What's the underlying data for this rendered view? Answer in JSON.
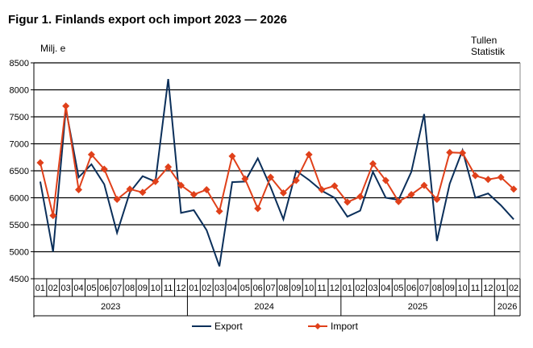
{
  "title": "Figur 1. Finlands export och import 2023 — 2026",
  "unit_label": "Milj. e",
  "source": [
    "Tullen",
    "Statistik"
  ],
  "chart_data": {
    "type": "line",
    "title": "Figur 1. Finlands export och import 2023 — 2026",
    "ylabel": "Milj. e",
    "ylim": [
      4500,
      8500
    ],
    "yticks": [
      4500,
      5000,
      5500,
      6000,
      6500,
      7000,
      7500,
      8000,
      8500
    ],
    "grid": true,
    "legend": "bottom",
    "years": [
      {
        "label": "2023",
        "months": 12
      },
      {
        "label": "2024",
        "months": 12
      },
      {
        "label": "2025",
        "months": 12
      },
      {
        "label": "2026",
        "months": 2
      }
    ],
    "categories": [
      "01",
      "02",
      "03",
      "04",
      "05",
      "06",
      "07",
      "08",
      "09",
      "10",
      "11",
      "12",
      "01",
      "02",
      "03",
      "04",
      "05",
      "06",
      "07",
      "08",
      "09",
      "10",
      "11",
      "12",
      "01",
      "02",
      "03",
      "04",
      "05",
      "06",
      "07",
      "08",
      "09",
      "10",
      "11",
      "12",
      "01",
      "02"
    ],
    "series": [
      {
        "name": "Export",
        "color": "#0b2f5a",
        "marker": "none",
        "values": [
          6300,
          5000,
          7650,
          6380,
          6620,
          6250,
          5350,
          6100,
          6400,
          6300,
          8200,
          5720,
          5770,
          5400,
          4730,
          6290,
          6300,
          6730,
          6200,
          5600,
          6500,
          6330,
          6130,
          6000,
          5650,
          5760,
          6480,
          6000,
          5960,
          6480,
          7550,
          5200,
          6260,
          6880,
          6000,
          6080,
          5860,
          5600
        ]
      },
      {
        "name": "Import",
        "color": "#e0401a",
        "marker": "diamond",
        "values": [
          6650,
          5670,
          7700,
          6150,
          6800,
          6530,
          5970,
          6160,
          6100,
          6300,
          6570,
          6230,
          6060,
          6150,
          5750,
          6770,
          6350,
          5800,
          6380,
          6090,
          6320,
          6800,
          6150,
          6220,
          5920,
          6020,
          6630,
          6320,
          5930,
          6060,
          6230,
          5970,
          6840,
          6830,
          6410,
          6340,
          6380,
          6160
        ]
      }
    ]
  }
}
